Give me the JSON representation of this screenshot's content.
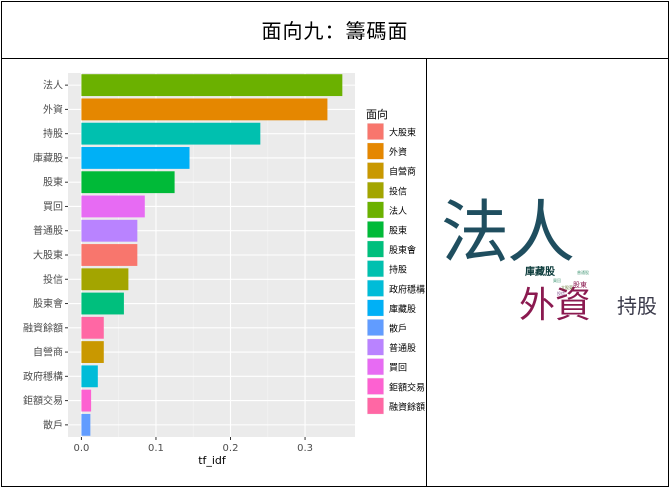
{
  "header": {
    "title": "面向九：籌碼面"
  },
  "chart_data": {
    "type": "bar",
    "orientation": "horizontal",
    "categories": [
      "法人",
      "外資",
      "持股",
      "庫藏股",
      "股東",
      "買回",
      "普通股",
      "大股東",
      "投信",
      "股東會",
      "融資餘額",
      "自營商",
      "政府穩構",
      "鉅額交易",
      "散戶"
    ],
    "values": [
      0.35,
      0.33,
      0.24,
      0.145,
      0.125,
      0.085,
      0.075,
      0.075,
      0.063,
      0.057,
      0.03,
      0.03,
      0.022,
      0.013,
      0.012
    ],
    "fill_groups": [
      "法人",
      "外資",
      "持股",
      "庫藏股",
      "股東",
      "買回",
      "普通股",
      "大股東",
      "投信",
      "股東會",
      "融資餘額",
      "自營商",
      "政府穩構",
      "鉅額交易",
      "散戶"
    ],
    "xlabel": "tf_idf",
    "ylabel": "",
    "xlim": [
      -0.018,
      0.367
    ],
    "x_ticks": [
      0.0,
      0.1,
      0.2,
      0.3
    ],
    "x_tick_labels": [
      "0.0",
      "0.1",
      "0.2",
      "0.3"
    ],
    "grid": true,
    "legend": {
      "title": "面向",
      "placement": "right",
      "items": [
        {
          "label": "大股東",
          "color": "#F8766D"
        },
        {
          "label": "外資",
          "color": "#E58700"
        },
        {
          "label": "自營商",
          "color": "#C99800"
        },
        {
          "label": "投信",
          "color": "#A3A500"
        },
        {
          "label": "法人",
          "color": "#6BB100"
        },
        {
          "label": "股東",
          "color": "#00BA38"
        },
        {
          "label": "股東會",
          "color": "#00BF7D"
        },
        {
          "label": "持股",
          "color": "#00C0AF"
        },
        {
          "label": "政府穩構",
          "color": "#00BCD8"
        },
        {
          "label": "庫藏股",
          "color": "#00B0F6"
        },
        {
          "label": "散戶",
          "color": "#619CFF"
        },
        {
          "label": "普通股",
          "color": "#B983FF"
        },
        {
          "label": "買回",
          "color": "#E76BF3"
        },
        {
          "label": "鉅額交易",
          "color": "#FD61D1"
        },
        {
          "label": "融資餘額",
          "color": "#FF67A4"
        }
      ]
    }
  },
  "wordcloud": {
    "words": [
      {
        "text": "法人",
        "color": "#1F4E5F"
      },
      {
        "text": "外資",
        "color": "#8B1A50"
      },
      {
        "text": "持股",
        "color": "#3A3A4A"
      },
      {
        "text": "庫藏股",
        "color": "#0E3D3D"
      },
      {
        "text": "股東",
        "color": "#8B1A50"
      },
      {
        "text": "買回",
        "color": "#4A9A7A"
      },
      {
        "text": "普通股",
        "color": "#4A9A7A"
      },
      {
        "text": "大股東",
        "color": "#6A7A3A"
      },
      {
        "text": "投信",
        "color": "#7A4A8A"
      }
    ]
  }
}
